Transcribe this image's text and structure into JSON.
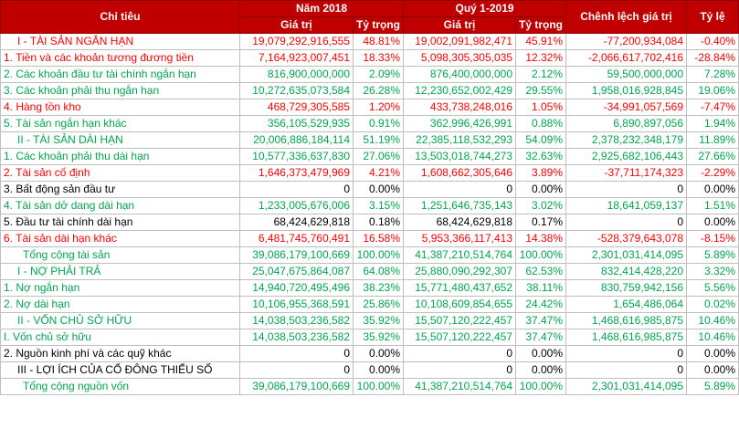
{
  "header": {
    "col_label": "Chỉ tiêu",
    "year_2018": "Năm 2018",
    "q1_2019": "Quý 1-2019",
    "diff": "Chênh lệch giá trị",
    "ratio": "Tỷ lệ",
    "value": "Giá trị",
    "weight": "Tỷ trọng"
  },
  "colors": {
    "red": "#ff0000",
    "green": "#00a650",
    "black": "#000000",
    "header": "#c00000"
  },
  "rows": [
    {
      "label": "I - TÀI SẢN NGẮN HẠN",
      "v2018": "19,079,292,916,555",
      "w2018": "48.81%",
      "v2019": "19,002,091,982,471",
      "w2019": "45.91%",
      "diff": "-77,200,934,084",
      "ratio": "-0.40%",
      "color": "red",
      "indent": "ind"
    },
    {
      "label": "1. Tiền và các khoản tương đương tiền",
      "v2018": "7,164,923,007,451",
      "w2018": "18.33%",
      "v2019": "5,098,305,305,035",
      "w2019": "12.32%",
      "diff": "-2,066,617,702,416",
      "ratio": "-28.84%",
      "color": "red",
      "indent": ""
    },
    {
      "label": "2. Các khoản đầu tư tài chính ngắn hạn",
      "v2018": "816,900,000,000",
      "w2018": "2.09%",
      "v2019": "876,400,000,000",
      "w2019": "2.12%",
      "diff": "59,500,000,000",
      "ratio": "7.28%",
      "color": "green",
      "indent": ""
    },
    {
      "label": "3. Các khoản phải thu ngắn hạn",
      "v2018": "10,272,635,073,584",
      "w2018": "26.28%",
      "v2019": "12,230,652,002,429",
      "w2019": "29.55%",
      "diff": "1,958,016,928,845",
      "ratio": "19.06%",
      "color": "green",
      "indent": ""
    },
    {
      "label": "4. Hàng tồn kho",
      "v2018": "468,729,305,585",
      "w2018": "1.20%",
      "v2019": "433,738,248,016",
      "w2019": "1.05%",
      "diff": "-34,991,057,569",
      "ratio": "-7.47%",
      "color": "red",
      "indent": ""
    },
    {
      "label": "5. Tài sản ngắn hạn khác",
      "v2018": "356,105,529,935",
      "w2018": "0.91%",
      "v2019": "362,996,426,991",
      "w2019": "0.88%",
      "diff": "6,890,897,056",
      "ratio": "1.94%",
      "color": "green",
      "indent": ""
    },
    {
      "label": "II - TÀI SẢN DÀI HẠN",
      "v2018": "20,006,886,184,114",
      "w2018": "51.19%",
      "v2019": "22,385,118,532,293",
      "w2019": "54.09%",
      "diff": "2,378,232,348,179",
      "ratio": "11.89%",
      "color": "green",
      "indent": "ind"
    },
    {
      "label": "1. Các khoản phải thu dài hạn",
      "v2018": "10,577,336,637,830",
      "w2018": "27.06%",
      "v2019": "13,503,018,744,273",
      "w2019": "32.63%",
      "diff": "2,925,682,106,443",
      "ratio": "27.66%",
      "color": "green",
      "indent": ""
    },
    {
      "label": "2. Tài sản cố định",
      "v2018": "1,646,373,479,969",
      "w2018": "4.21%",
      "v2019": "1,608,662,305,646",
      "w2019": "3.89%",
      "diff": "-37,711,174,323",
      "ratio": "-2.29%",
      "color": "red",
      "indent": ""
    },
    {
      "label": "3. Bất động sản đầu tư",
      "v2018": "0",
      "w2018": "0.00%",
      "v2019": "0",
      "w2019": "0.00%",
      "diff": "0",
      "ratio": "0.00%",
      "color": "black",
      "indent": ""
    },
    {
      "label": "4. Tài sản dở dang dài hạn",
      "v2018": "1,233,005,676,006",
      "w2018": "3.15%",
      "v2019": "1,251,646,735,143",
      "w2019": "3.02%",
      "diff": "18,641,059,137",
      "ratio": "1.51%",
      "color": "green",
      "indent": ""
    },
    {
      "label": "5. Đầu tư tài chính dài hạn",
      "v2018": "68,424,629,818",
      "w2018": "0.18%",
      "v2019": "68,424,629,818",
      "w2019": "0.17%",
      "diff": "0",
      "ratio": "0.00%",
      "color": "black",
      "indent": ""
    },
    {
      "label": "6. Tài sản dài hạn khác",
      "v2018": "6,481,745,760,491",
      "w2018": "16.58%",
      "v2019": "5,953,366,117,413",
      "w2019": "14.38%",
      "diff": "-528,379,643,078",
      "ratio": "-8.15%",
      "color": "red",
      "indent": ""
    },
    {
      "label": "Tổng cộng tài sản",
      "v2018": "39,086,179,100,669",
      "w2018": "100.00%",
      "v2019": "41,387,210,514,764",
      "w2019": "100.00%",
      "diff": "2,301,031,414,095",
      "ratio": "5.89%",
      "color": "green",
      "indent": "ind2"
    },
    {
      "label": "I - NỢ PHẢI TRẢ",
      "v2018": "25,047,675,864,087",
      "w2018": "64.08%",
      "v2019": "25,880,090,292,307",
      "w2019": "62.53%",
      "diff": "832,414,428,220",
      "ratio": "3.32%",
      "color": "green",
      "indent": "ind"
    },
    {
      "label": "1. Nợ ngắn hạn",
      "v2018": "14,940,720,495,496",
      "w2018": "38.23%",
      "v2019": "15,771,480,437,652",
      "w2019": "38.11%",
      "diff": "830,759,942,156",
      "ratio": "5.56%",
      "color": "green",
      "indent": ""
    },
    {
      "label": "2. Nợ dài hạn",
      "v2018": "10,106,955,368,591",
      "w2018": "25.86%",
      "v2019": "10,108,609,854,655",
      "w2019": "24.42%",
      "diff": "1,654,486,064",
      "ratio": "0.02%",
      "color": "green",
      "indent": ""
    },
    {
      "label": "II - VỐN CHỦ SỞ HỮU",
      "v2018": "14,038,503,236,582",
      "w2018": "35.92%",
      "v2019": "15,507,120,222,457",
      "w2019": "37.47%",
      "diff": "1,468,616,985,875",
      "ratio": "10.46%",
      "color": "green",
      "indent": "ind"
    },
    {
      "label": "I. Vốn chủ sở hữu",
      "v2018": "14,038,503,236,582",
      "w2018": "35.92%",
      "v2019": "15,507,120,222,457",
      "w2019": "37.47%",
      "diff": "1,468,616,985,875",
      "ratio": "10.46%",
      "color": "green",
      "indent": ""
    },
    {
      "label": "2. Nguồn kinh phí và các quỹ khác",
      "v2018": "0",
      "w2018": "0.00%",
      "v2019": "0",
      "w2019": "0.00%",
      "diff": "0",
      "ratio": "0.00%",
      "color": "black",
      "indent": ""
    },
    {
      "label": "III - LỢI ÍCH CỦA CỔ ĐÔNG THIỂU SỐ",
      "v2018": "0",
      "w2018": "0.00%",
      "v2019": "0",
      "w2019": "0.00%",
      "diff": "0",
      "ratio": "0.00%",
      "color": "black",
      "indent": "ind"
    },
    {
      "label": "Tổng cộng nguồn vốn",
      "v2018": "39,086,179,100,669",
      "w2018": "100.00%",
      "v2019": "41,387,210,514,764",
      "w2019": "100.00%",
      "diff": "2,301,031,414,095",
      "ratio": "5.89%",
      "color": "green",
      "indent": "ind2"
    }
  ]
}
